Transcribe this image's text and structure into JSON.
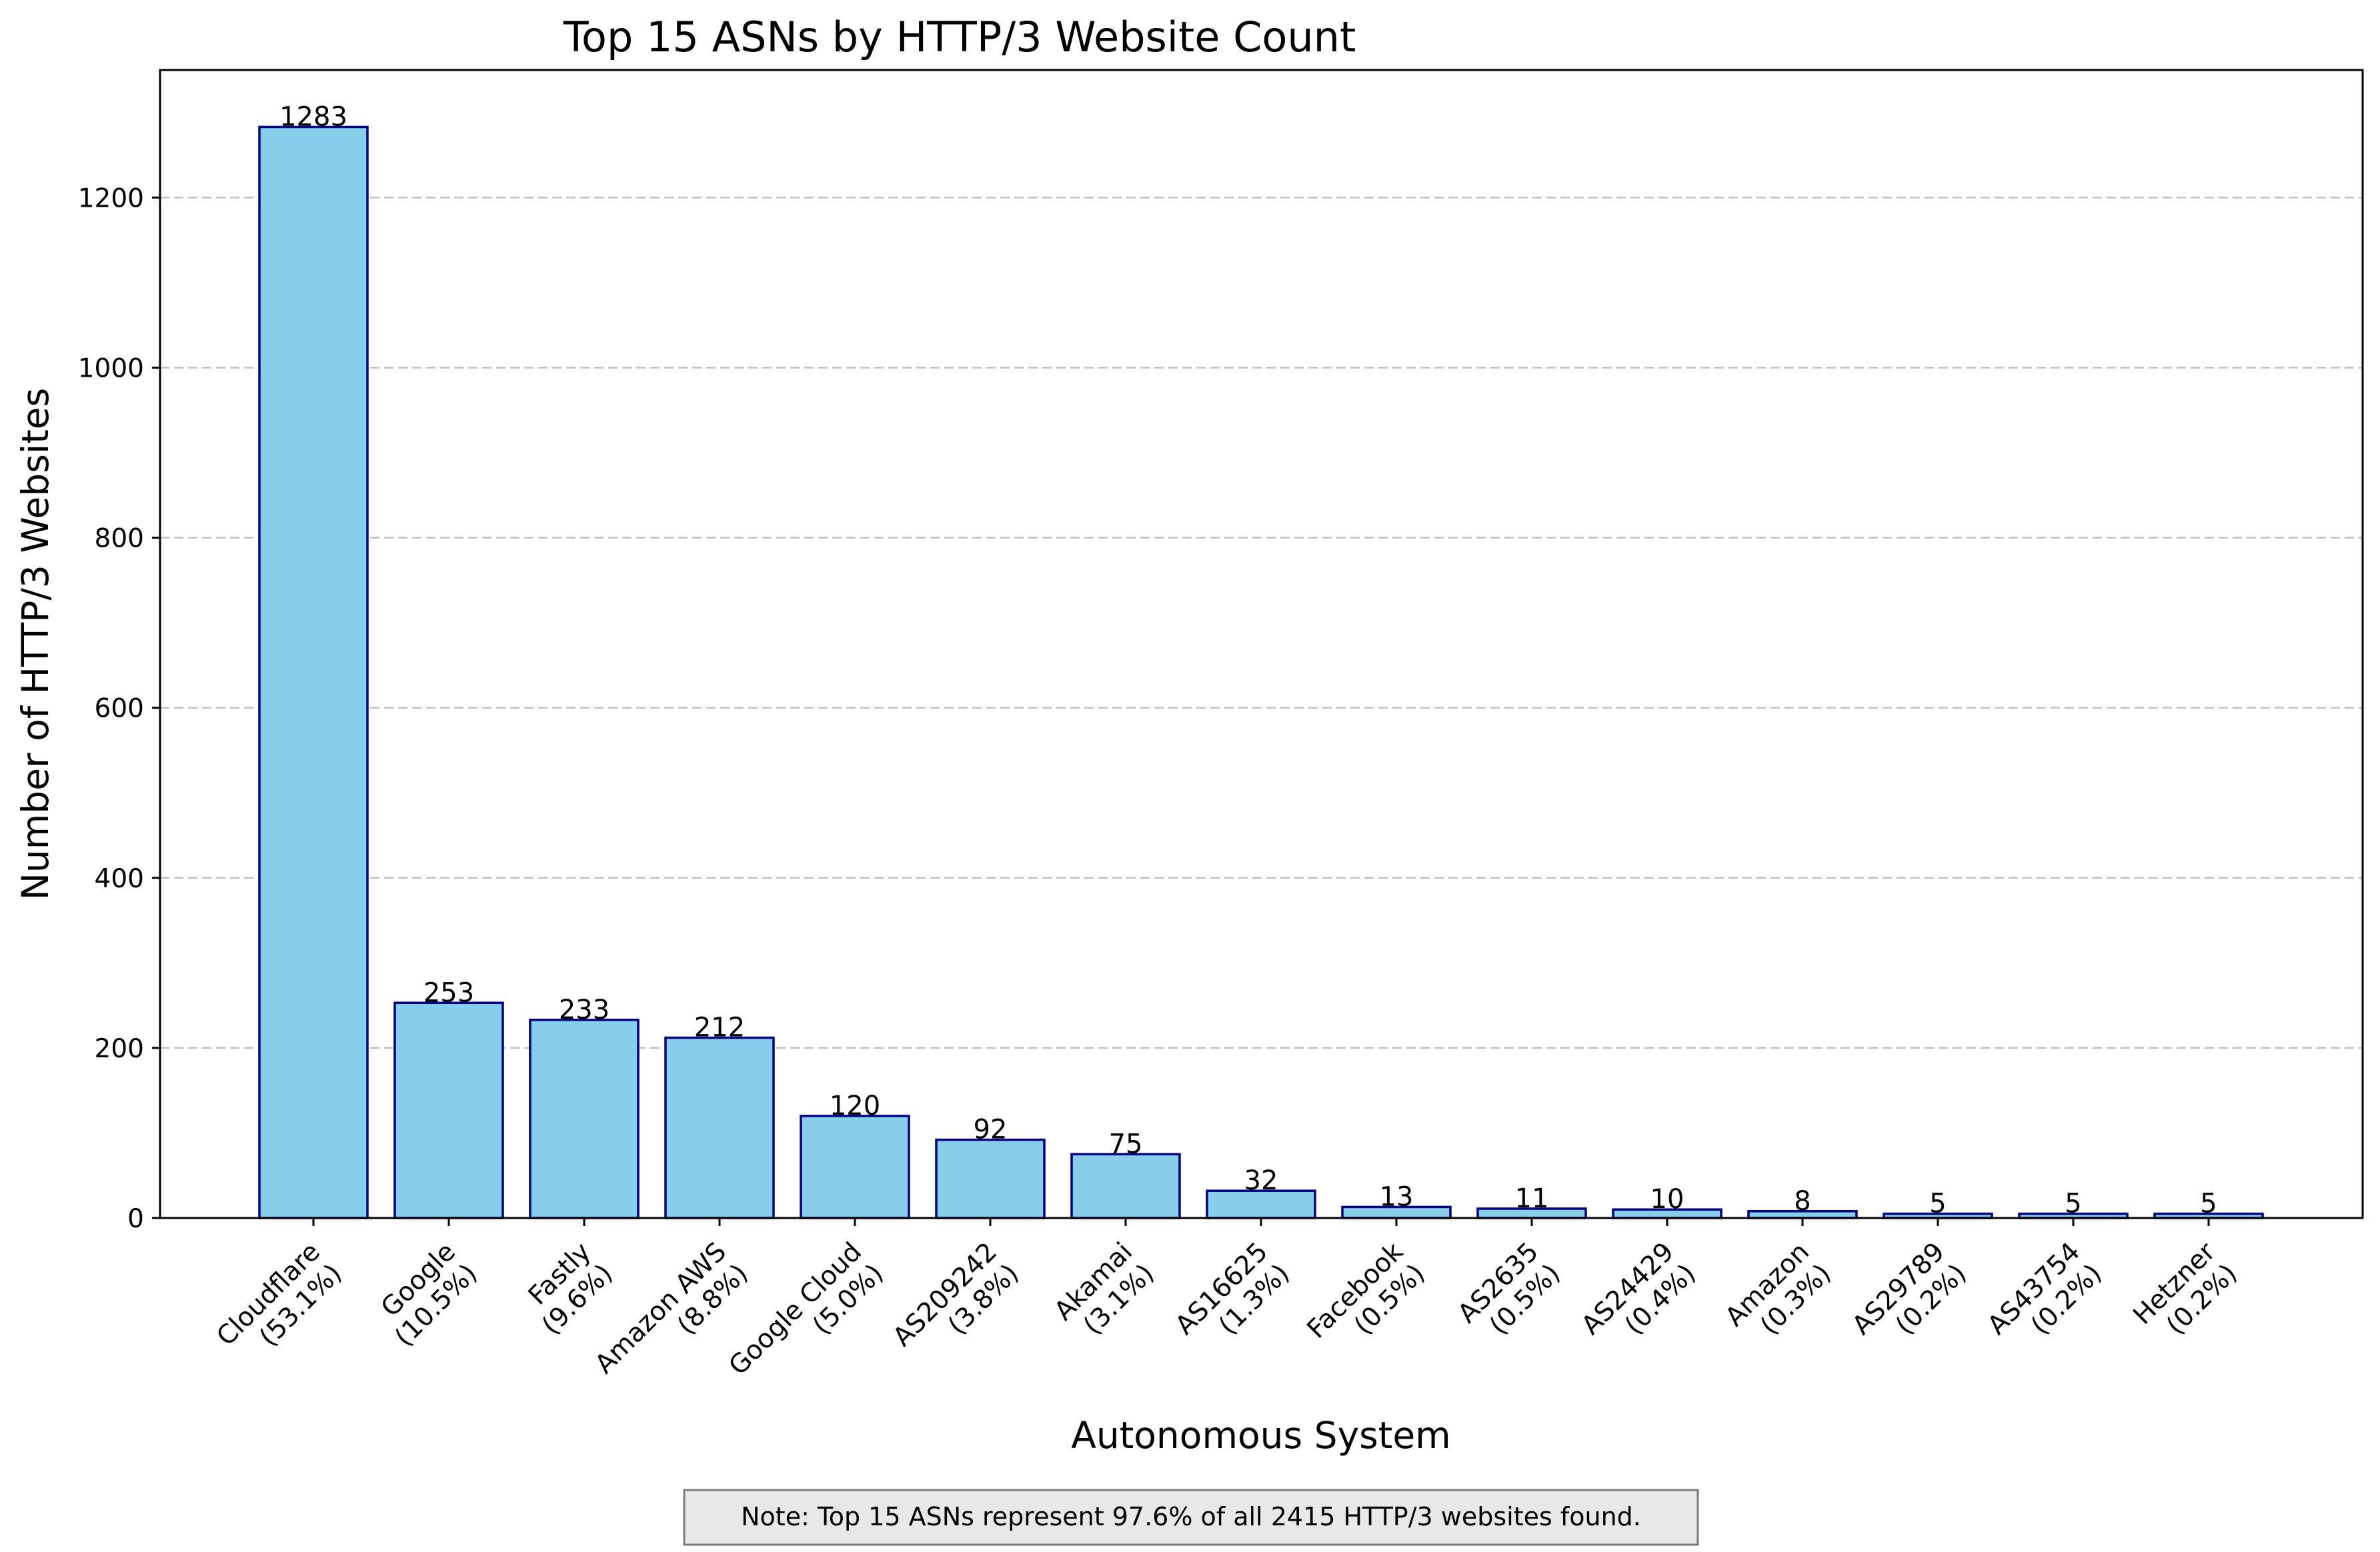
{
  "chart_data": {
    "type": "bar",
    "title": "Top 15 ASNs by HTTP/3 Website Count",
    "xlabel": "Autonomous System",
    "ylabel": "Number of HTTP/3 Websites",
    "categories": [
      {
        "name": "Cloudflare",
        "pct": "(53.1%)"
      },
      {
        "name": "Google",
        "pct": "(10.5%)"
      },
      {
        "name": "Fastly",
        "pct": "(9.6%)"
      },
      {
        "name": "Amazon AWS",
        "pct": "(8.8%)"
      },
      {
        "name": "Google Cloud",
        "pct": "(5.0%)"
      },
      {
        "name": "AS209242",
        "pct": "(3.8%)"
      },
      {
        "name": "Akamai",
        "pct": "(3.1%)"
      },
      {
        "name": "AS16625",
        "pct": "(1.3%)"
      },
      {
        "name": "Facebook",
        "pct": "(0.5%)"
      },
      {
        "name": "AS2635",
        "pct": "(0.5%)"
      },
      {
        "name": "AS24429",
        "pct": "(0.4%)"
      },
      {
        "name": "Amazon",
        "pct": "(0.3%)"
      },
      {
        "name": "AS29789",
        "pct": "(0.2%)"
      },
      {
        "name": "AS43754",
        "pct": "(0.2%)"
      },
      {
        "name": "Hetzner",
        "pct": "(0.2%)"
      }
    ],
    "values": [
      1283,
      253,
      233,
      212,
      120,
      92,
      75,
      32,
      13,
      11,
      10,
      8,
      5,
      5,
      5
    ],
    "ylim": [
      0,
      1350
    ],
    "yticks": [
      0,
      200,
      400,
      600,
      800,
      1000,
      1200
    ],
    "grid": "y-dashed",
    "bar_color": "#87ceeb",
    "bar_edge_color": "#000080",
    "note": "Note: Top 15 ASNs represent 97.6% of all 2415 HTTP/3 websites found."
  }
}
